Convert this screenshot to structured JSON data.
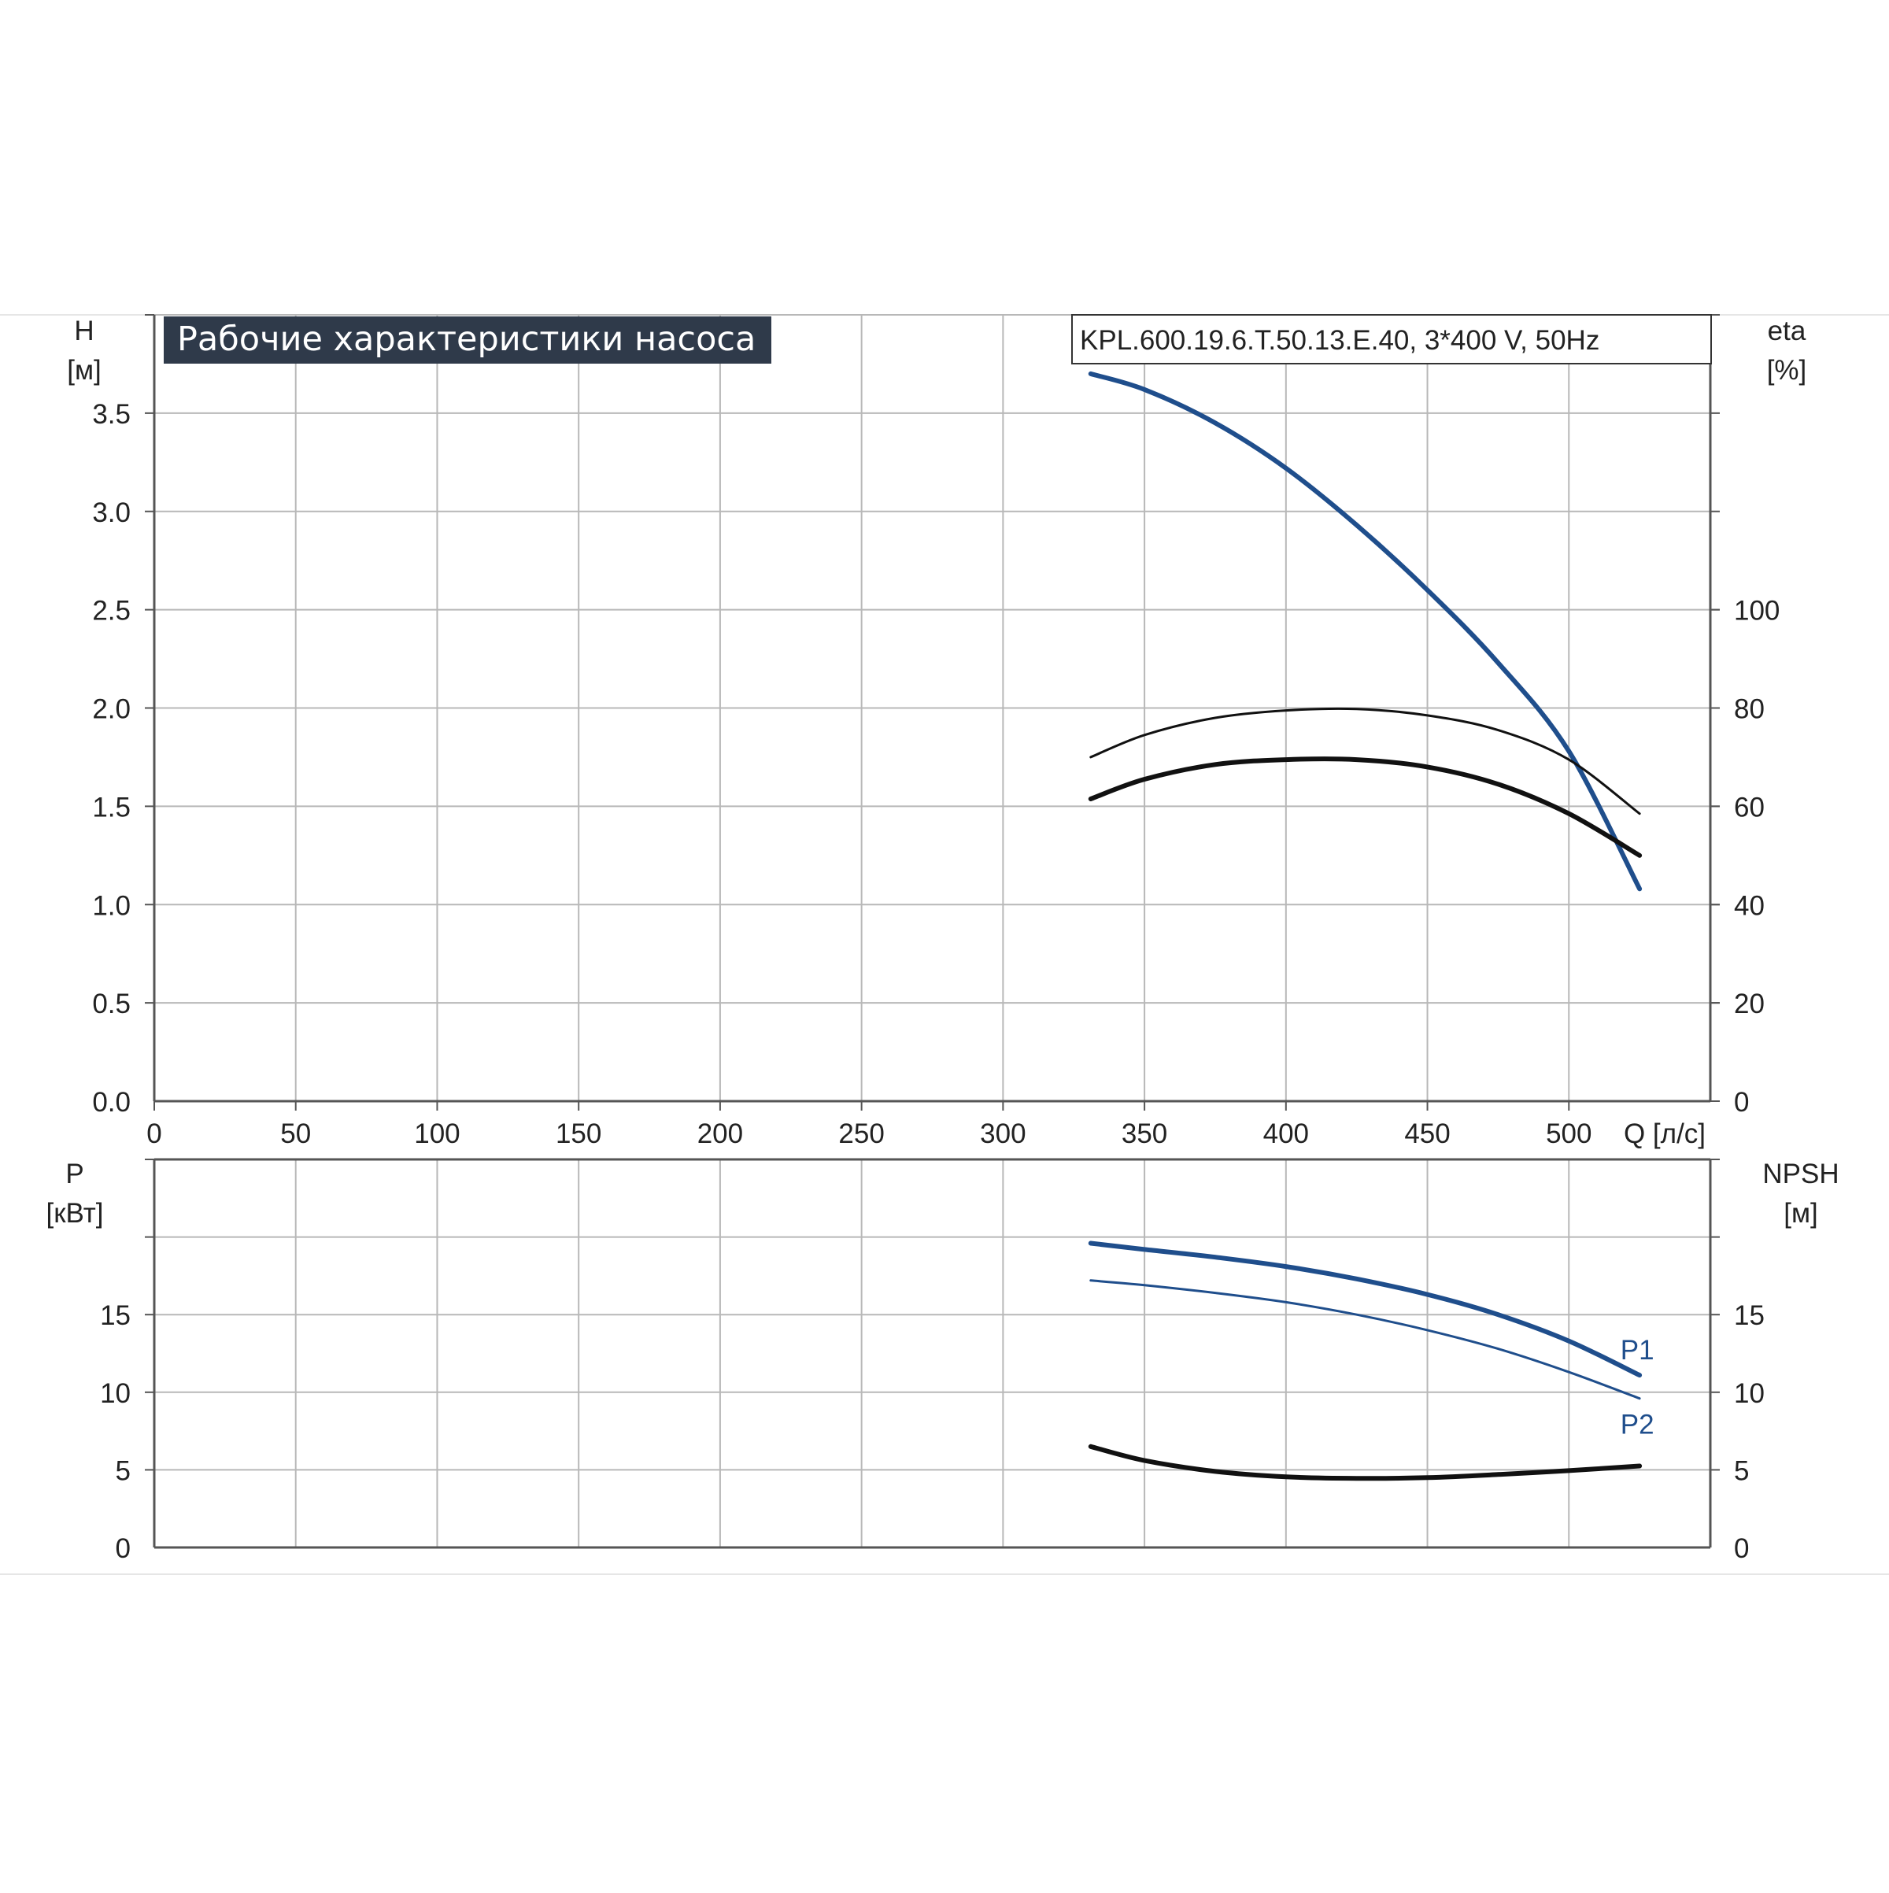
{
  "header": {
    "title": "Рабочие характеристики насоса",
    "model": "KPL.600.19.6.T.50.13.E.40, 3*400 V, 50Hz"
  },
  "colors": {
    "grid": "#b8b8b8",
    "axis": "#555555",
    "title_bg": "#2f3a4a",
    "blue": "#1f4e8c",
    "black": "#111111"
  },
  "chart_data": [
    {
      "type": "line",
      "panel": "top",
      "x_axis": {
        "label": "Q [л/с]",
        "ticks": [
          "0",
          "50",
          "100",
          "150",
          "200",
          "250",
          "300",
          "350",
          "400",
          "450",
          "500"
        ],
        "range": [
          0,
          550
        ]
      },
      "y_left": {
        "label_top": "H",
        "label_unit": "[м]",
        "ticks": [
          "0.0",
          "0.5",
          "1.0",
          "1.5",
          "2.0",
          "2.5",
          "3.0",
          "3.5"
        ],
        "range": [
          0,
          4.0
        ]
      },
      "y_right": {
        "label_top": "eta",
        "label_unit": "[%]",
        "ticks": [
          "0",
          "20",
          "40",
          "60",
          "80",
          "100"
        ],
        "range": [
          0,
          160
        ]
      },
      "grid": true,
      "series": [
        {
          "axis": "left",
          "color": "#1f4e8c",
          "weight": "thick",
          "x": [
            331,
            350,
            375,
            400,
            425,
            450,
            475,
            500,
            525
          ],
          "y": [
            3.7,
            3.62,
            3.45,
            3.22,
            2.93,
            2.6,
            2.23,
            1.78,
            1.08
          ]
        },
        {
          "axis": "right",
          "color": "#111111",
          "weight": "thin",
          "x": [
            331,
            350,
            375,
            400,
            425,
            450,
            475,
            500,
            525
          ],
          "y": [
            70,
            74.5,
            78,
            79.5,
            79.8,
            78.5,
            75.5,
            69.5,
            58.5
          ]
        },
        {
          "axis": "right",
          "color": "#111111",
          "weight": "thick",
          "x": [
            331,
            350,
            375,
            400,
            425,
            450,
            475,
            500,
            525
          ],
          "y": [
            61.5,
            65.5,
            68.5,
            69.5,
            69.5,
            68,
            64.5,
            58.5,
            50
          ]
        }
      ]
    },
    {
      "type": "line",
      "panel": "bottom",
      "x_axis": {
        "ticks": [],
        "range": [
          0,
          550
        ]
      },
      "y_left": {
        "label_top": "P",
        "label_unit": "[кВт]",
        "ticks": [
          "0",
          "5",
          "10",
          "15"
        ],
        "range": [
          0,
          25
        ]
      },
      "y_right": {
        "label_top": "NPSH",
        "label_unit": "[м]",
        "ticks": [
          "0",
          "5",
          "10",
          "15"
        ],
        "range": [
          0,
          25
        ]
      },
      "grid": true,
      "series": [
        {
          "name": "P1",
          "color": "#1f4e8c",
          "weight": "thick",
          "x": [
            331,
            350,
            375,
            400,
            425,
            450,
            475,
            500,
            525
          ],
          "y": [
            19.6,
            19.2,
            18.7,
            18.1,
            17.3,
            16.3,
            15.0,
            13.3,
            11.1
          ]
        },
        {
          "name": "P2",
          "color": "#1f4e8c",
          "weight": "thin",
          "x": [
            331,
            350,
            375,
            400,
            425,
            450,
            475,
            500,
            525
          ],
          "y": [
            17.2,
            16.9,
            16.4,
            15.8,
            15.0,
            14.0,
            12.8,
            11.3,
            9.6
          ]
        },
        {
          "color": "#111111",
          "weight": "thick",
          "x": [
            331,
            350,
            375,
            400,
            425,
            450,
            475,
            500,
            525
          ],
          "y": [
            6.5,
            5.6,
            4.9,
            4.55,
            4.45,
            4.5,
            4.7,
            4.95,
            5.25
          ]
        }
      ]
    }
  ]
}
